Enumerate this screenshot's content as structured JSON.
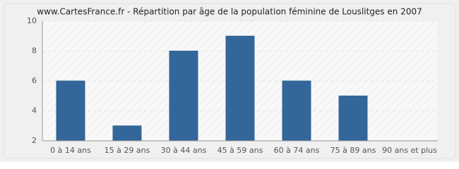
{
  "chart_data": {
    "type": "bar",
    "title": "www.CartesFrance.fr - Répartition par âge de la population féminine de Louslitges en 2007",
    "categories": [
      "0 à 14 ans",
      "15 à 29 ans",
      "30 à 44 ans",
      "45 à 59 ans",
      "60 à 74 ans",
      "75 à 89 ans",
      "90 ans et plus"
    ],
    "values": [
      6,
      3,
      8,
      9,
      6,
      5,
      2
    ],
    "color": "#336699",
    "ylim": [
      2,
      10
    ],
    "yticks": [
      2,
      4,
      6,
      8,
      10
    ],
    "grid": true
  }
}
